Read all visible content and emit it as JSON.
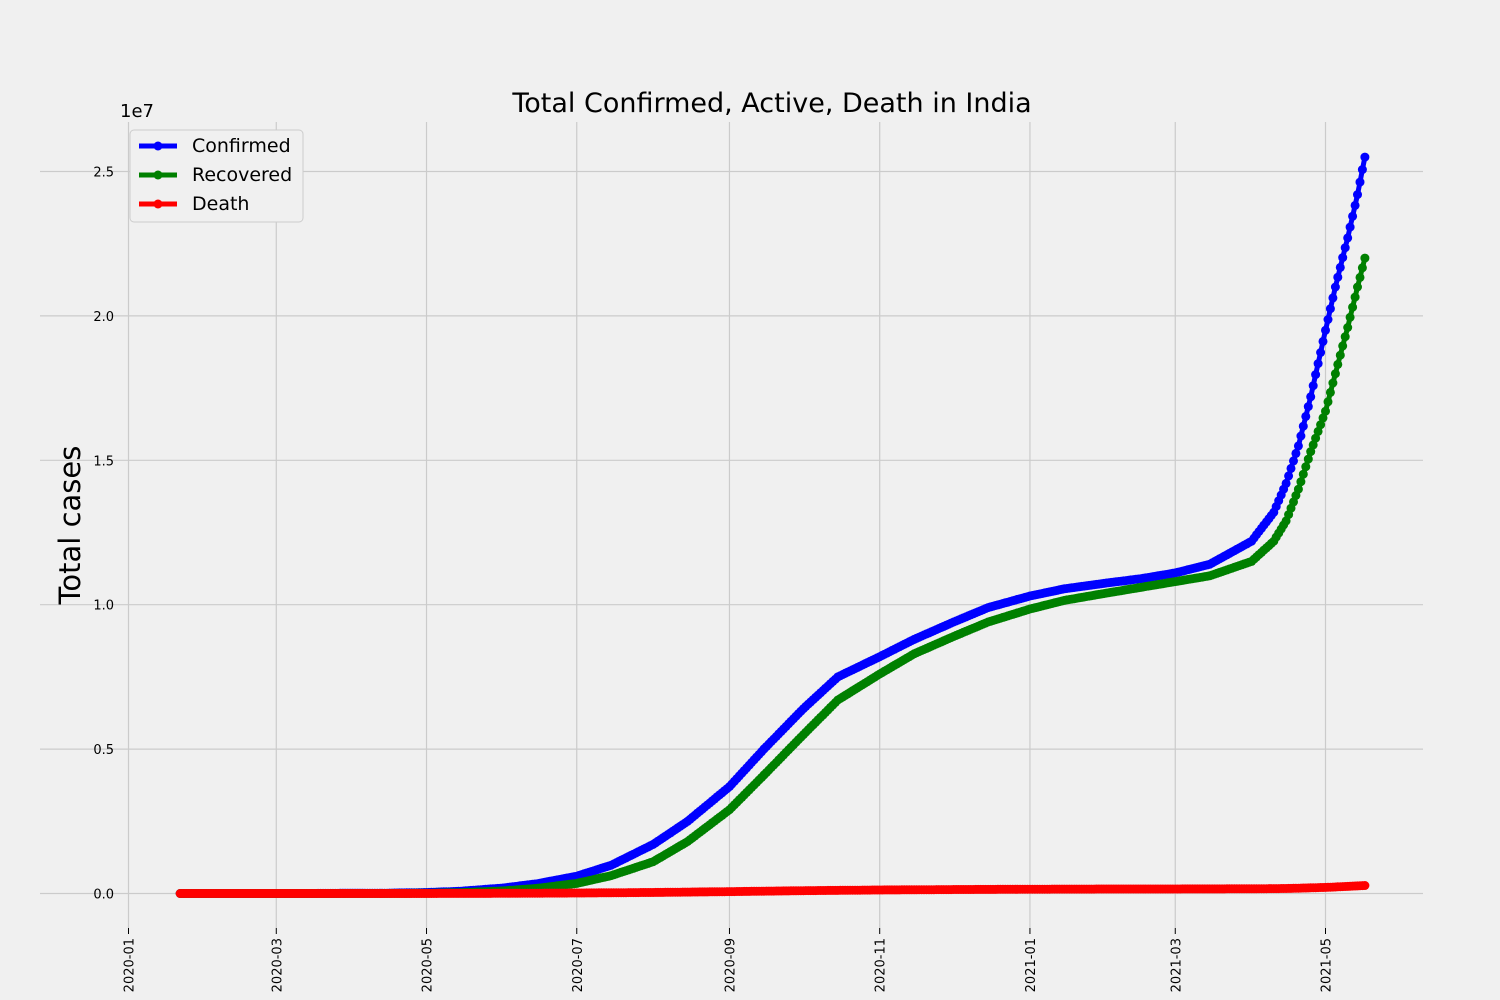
{
  "chart_data": {
    "type": "line",
    "title": "Total Confirmed, Active, Death in India",
    "xlabel": "",
    "ylabel": "Total cases",
    "y_offset_label": "1e7",
    "x_range": [
      "2020-01-01",
      "2021-06-12"
    ],
    "ylim": [
      -0.11,
      2.68
    ],
    "y_unit_multiplier": 10000000,
    "x_ticks": [
      "2020-01",
      "2020-03",
      "2020-05",
      "2020-07",
      "2020-09",
      "2020-11",
      "2021-01",
      "2021-03",
      "2021-05"
    ],
    "y_ticks": [
      "0.0",
      "0.5",
      "1.0",
      "1.5",
      "2.0",
      "2.5"
    ],
    "grid": true,
    "legend_position": "top-left",
    "series": [
      {
        "name": "Confirmed",
        "color": "#0000ff",
        "points": [
          [
            "2020-01-22",
            0
          ],
          [
            "2020-03-15",
            0.0001
          ],
          [
            "2020-04-15",
            0.0012
          ],
          [
            "2020-05-01",
            0.0035
          ],
          [
            "2020-05-15",
            0.008
          ],
          [
            "2020-06-01",
            0.019
          ],
          [
            "2020-06-15",
            0.034
          ],
          [
            "2020-07-01",
            0.06
          ],
          [
            "2020-07-15",
            0.098
          ],
          [
            "2020-08-01",
            0.17
          ],
          [
            "2020-08-15",
            0.25
          ],
          [
            "2020-09-01",
            0.37
          ],
          [
            "2020-09-15",
            0.5
          ],
          [
            "2020-10-01",
            0.64
          ],
          [
            "2020-10-15",
            0.75
          ],
          [
            "2020-11-01",
            0.82
          ],
          [
            "2020-11-15",
            0.88
          ],
          [
            "2020-12-01",
            0.94
          ],
          [
            "2020-12-15",
            0.99
          ],
          [
            "2021-01-01",
            1.03
          ],
          [
            "2021-01-15",
            1.055
          ],
          [
            "2021-02-01",
            1.075
          ],
          [
            "2021-02-15",
            1.09
          ],
          [
            "2021-03-01",
            1.11
          ],
          [
            "2021-03-15",
            1.14
          ],
          [
            "2021-04-01",
            1.22
          ],
          [
            "2021-04-10",
            1.32
          ],
          [
            "2021-04-15",
            1.42
          ],
          [
            "2021-04-20",
            1.55
          ],
          [
            "2021-04-25",
            1.72
          ],
          [
            "2021-05-01",
            1.95
          ],
          [
            "2021-05-05",
            2.1
          ],
          [
            "2021-05-10",
            2.27
          ],
          [
            "2021-05-14",
            2.42
          ],
          [
            "2021-05-17",
            2.55
          ]
        ]
      },
      {
        "name": "Recovered",
        "color": "#008000",
        "points": [
          [
            "2020-01-22",
            0
          ],
          [
            "2020-04-15",
            0.0001
          ],
          [
            "2020-05-01",
            0.0008
          ],
          [
            "2020-05-15",
            0.003
          ],
          [
            "2020-06-01",
            0.009
          ],
          [
            "2020-06-15",
            0.018
          ],
          [
            "2020-07-01",
            0.035
          ],
          [
            "2020-07-15",
            0.062
          ],
          [
            "2020-08-01",
            0.11
          ],
          [
            "2020-08-15",
            0.18
          ],
          [
            "2020-09-01",
            0.29
          ],
          [
            "2020-09-15",
            0.41
          ],
          [
            "2020-10-01",
            0.55
          ],
          [
            "2020-10-15",
            0.67
          ],
          [
            "2020-11-01",
            0.76
          ],
          [
            "2020-11-15",
            0.83
          ],
          [
            "2020-12-01",
            0.89
          ],
          [
            "2020-12-15",
            0.94
          ],
          [
            "2021-01-01",
            0.985
          ],
          [
            "2021-01-15",
            1.015
          ],
          [
            "2021-02-01",
            1.04
          ],
          [
            "2021-02-15",
            1.06
          ],
          [
            "2021-03-01",
            1.08
          ],
          [
            "2021-03-15",
            1.1
          ],
          [
            "2021-04-01",
            1.15
          ],
          [
            "2021-04-10",
            1.22
          ],
          [
            "2021-04-15",
            1.29
          ],
          [
            "2021-04-20",
            1.4
          ],
          [
            "2021-04-25",
            1.53
          ],
          [
            "2021-05-01",
            1.67
          ],
          [
            "2021-05-05",
            1.8
          ],
          [
            "2021-05-10",
            1.96
          ],
          [
            "2021-05-14",
            2.1
          ],
          [
            "2021-05-17",
            2.2
          ]
        ]
      },
      {
        "name": "Death",
        "color": "#ff0000",
        "points": [
          [
            "2020-01-22",
            0
          ],
          [
            "2020-05-01",
            0.0001
          ],
          [
            "2020-06-01",
            0.0006
          ],
          [
            "2020-07-01",
            0.0017
          ],
          [
            "2020-08-01",
            0.0036
          ],
          [
            "2020-09-01",
            0.0065
          ],
          [
            "2020-10-01",
            0.0098
          ],
          [
            "2020-11-01",
            0.0122
          ],
          [
            "2020-12-01",
            0.0137
          ],
          [
            "2021-01-01",
            0.0149
          ],
          [
            "2021-02-01",
            0.0155
          ],
          [
            "2021-03-01",
            0.0157
          ],
          [
            "2021-04-01",
            0.0163
          ],
          [
            "2021-04-15",
            0.0173
          ],
          [
            "2021-05-01",
            0.0211
          ],
          [
            "2021-05-10",
            0.0246
          ],
          [
            "2021-05-17",
            0.0278
          ]
        ]
      }
    ]
  }
}
